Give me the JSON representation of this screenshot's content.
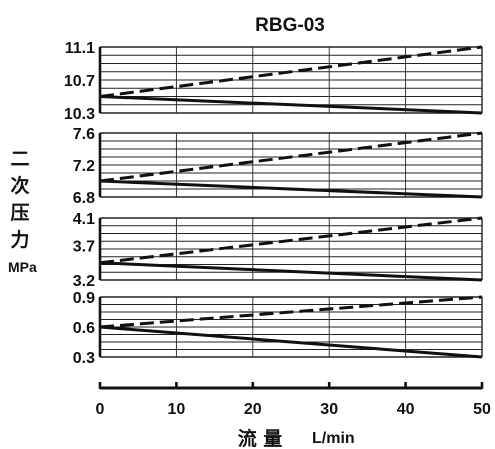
{
  "chart_data": {
    "type": "line",
    "title": "RBG-03",
    "ylabel": "二次压力",
    "yunit": "MPa",
    "xlabel": "流 量",
    "xunit": "L/min",
    "x_ticks": [
      0,
      10,
      20,
      30,
      40,
      50
    ],
    "xlim": [
      0,
      50
    ],
    "panels": [
      {
        "name": "panel-1",
        "ylim": [
          10.3,
          11.1
        ],
        "y_tick_labels": [
          "11.1",
          "10.7",
          "10.3"
        ],
        "y_tick_values": [
          11.1,
          10.7,
          10.3
        ],
        "series": [
          {
            "style": "dashed",
            "x": [
              0,
              50
            ],
            "y": [
              10.5,
              11.1
            ]
          },
          {
            "style": "solid",
            "x": [
              0,
              50
            ],
            "y": [
              10.5,
              10.3
            ]
          }
        ]
      },
      {
        "name": "panel-2",
        "ylim": [
          6.8,
          7.6
        ],
        "y_tick_labels": [
          "7.6",
          "7.2",
          "6.8"
        ],
        "y_tick_values": [
          7.6,
          7.2,
          6.8
        ],
        "series": [
          {
            "style": "dashed",
            "x": [
              0,
              50
            ],
            "y": [
              7.0,
              7.6
            ]
          },
          {
            "style": "solid",
            "x": [
              0,
              50
            ],
            "y": [
              7.0,
              6.8
            ]
          }
        ]
      },
      {
        "name": "panel-3",
        "ylim": [
          3.2,
          4.1
        ],
        "y_tick_labels": [
          "4.1",
          "3.7",
          "3.2"
        ],
        "y_tick_values": [
          4.1,
          3.7,
          3.2
        ],
        "series": [
          {
            "style": "dashed",
            "x": [
              0,
              50
            ],
            "y": [
              3.45,
              4.1
            ]
          },
          {
            "style": "solid",
            "x": [
              0,
              50
            ],
            "y": [
              3.45,
              3.2
            ]
          }
        ]
      },
      {
        "name": "panel-4",
        "ylim": [
          0.3,
          0.9
        ],
        "y_tick_labels": [
          "0.9",
          "0.6",
          "0.3"
        ],
        "y_tick_values": [
          0.9,
          0.6,
          0.3
        ],
        "series": [
          {
            "style": "dashed",
            "x": [
              0,
              50
            ],
            "y": [
              0.6,
              0.9
            ]
          },
          {
            "style": "solid",
            "x": [
              0,
              50
            ],
            "y": [
              0.6,
              0.3
            ]
          }
        ]
      }
    ],
    "grid": true,
    "legend": "none",
    "colors": {
      "line": "#111111",
      "grid": "#222222"
    }
  }
}
